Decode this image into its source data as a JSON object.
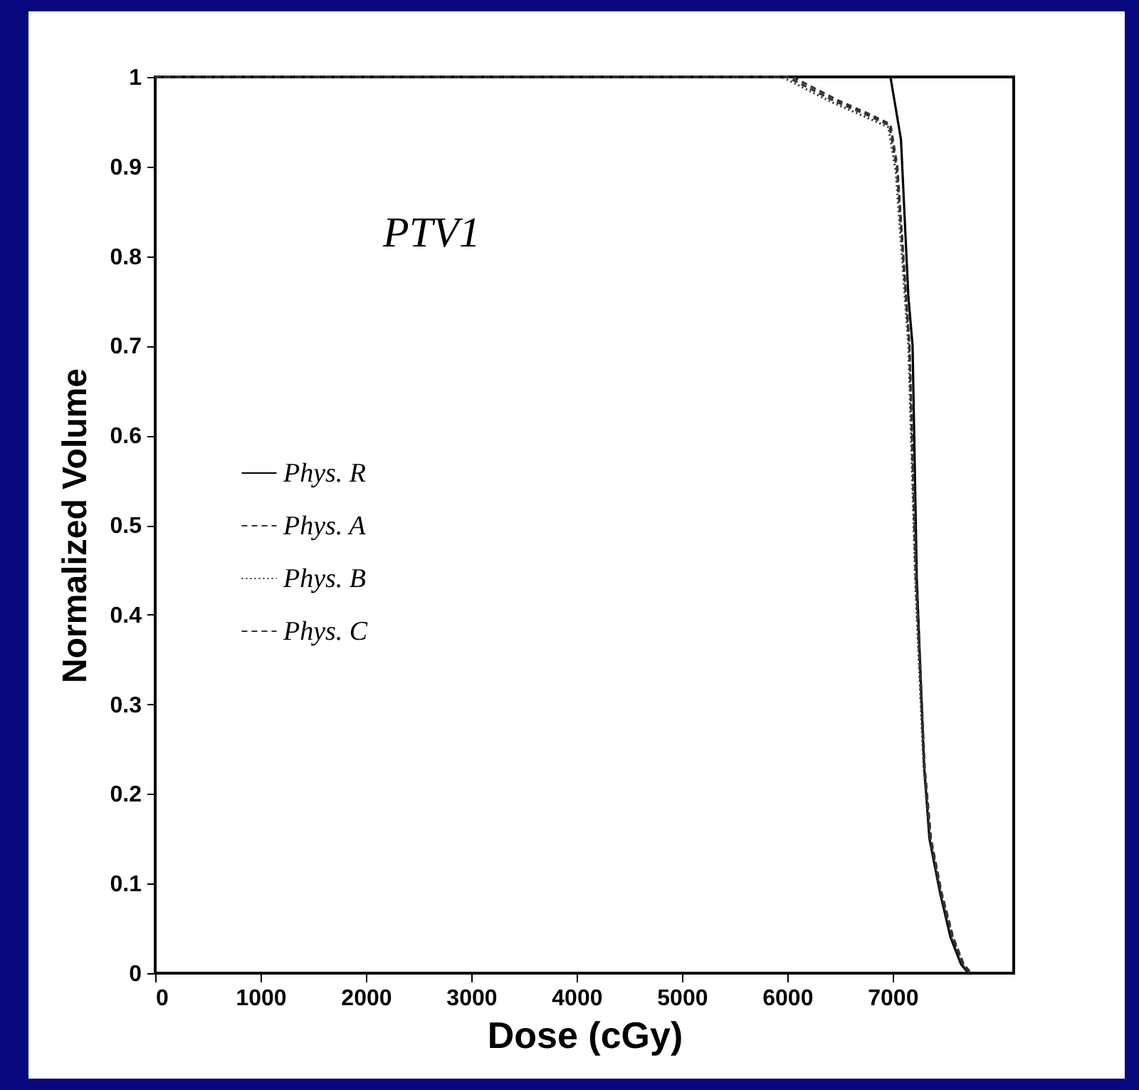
{
  "chart_data": {
    "type": "line",
    "xlabel": "Dose (cGy)",
    "ylabel": "Normalized Volume",
    "annotations": [
      "PTV1"
    ],
    "xlim": [
      0,
      8150
    ],
    "xticks": [
      0,
      1000,
      2000,
      3000,
      4000,
      5000,
      6000,
      7000
    ],
    "ylim": [
      0,
      1
    ],
    "yticks": [
      0,
      0.1,
      0.2,
      0.3,
      0.4,
      0.5,
      0.6,
      0.7,
      0.8,
      0.9,
      1
    ],
    "grid": false,
    "legend": "left",
    "marker": "none",
    "series": [
      {
        "name": "Phys. R",
        "color": "#000000",
        "line_style": "solid",
        "x": [
          0,
          6980,
          7080,
          7150,
          7190,
          7230,
          7300,
          7350,
          7450,
          7550,
          7650,
          7720
        ],
        "values": [
          1,
          1,
          0.93,
          0.755,
          0.7,
          0.44,
          0.23,
          0.15,
          0.09,
          0.04,
          0.01,
          0
        ]
      },
      {
        "name": "Phys. A",
        "color": "#333333",
        "line_style": "dashed",
        "x": [
          0,
          6000,
          6450,
          6770,
          6970,
          7040,
          7160,
          7220,
          7300,
          7360,
          7460,
          7570,
          7670,
          7740
        ],
        "values": [
          1,
          1,
          0.973,
          0.957,
          0.946,
          0.898,
          0.7,
          0.44,
          0.23,
          0.15,
          0.09,
          0.04,
          0.01,
          0
        ]
      },
      {
        "name": "Phys. B",
        "color": "#333333",
        "line_style": "dotted",
        "x": [
          0,
          5950,
          6420,
          6750,
          6960,
          7030,
          7150,
          7215,
          7295,
          7355,
          7455,
          7560,
          7660,
          7730
        ],
        "values": [
          1,
          1,
          0.972,
          0.955,
          0.944,
          0.895,
          0.7,
          0.44,
          0.23,
          0.15,
          0.09,
          0.04,
          0.01,
          0
        ]
      },
      {
        "name": "Phys. C",
        "color": "#333333",
        "line_style": "dashed",
        "x": [
          0,
          6050,
          6480,
          6790,
          6980,
          7045,
          7160,
          7225,
          7305,
          7365,
          7465,
          7575,
          7675,
          7745
        ],
        "values": [
          1,
          1,
          0.974,
          0.958,
          0.947,
          0.9,
          0.7,
          0.44,
          0.23,
          0.15,
          0.09,
          0.04,
          0.01,
          0
        ]
      }
    ]
  }
}
